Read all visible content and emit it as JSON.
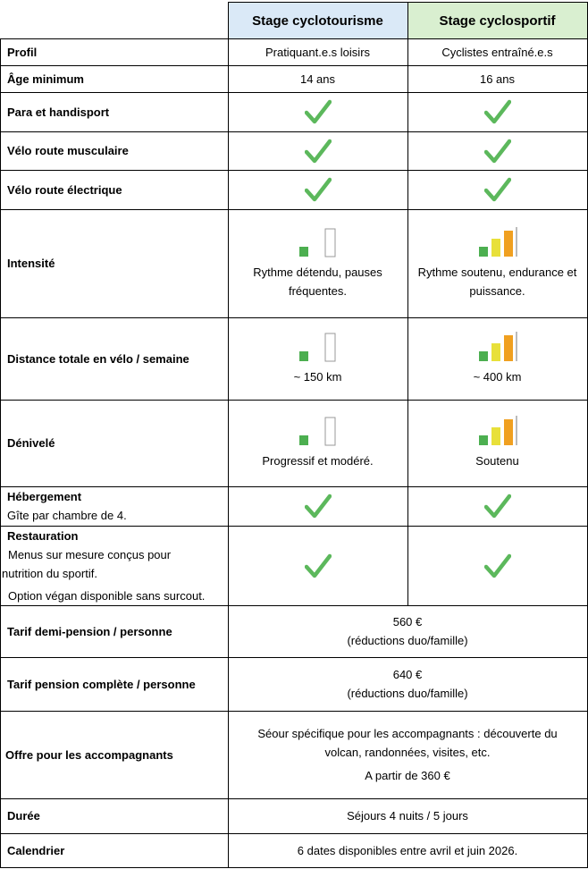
{
  "header": {
    "col1": "Stage cyclotourisme",
    "col2": "Stage cyclosportif"
  },
  "rows": {
    "profil": {
      "label": "Profil",
      "c1": "Pratiquant.e.s loisirs",
      "c2": "Cyclistes entraîné.e.s"
    },
    "age": {
      "label": "Âge minimum",
      "c1": "14 ans",
      "c2": "16 ans"
    },
    "para": {
      "label": "Para et handisport"
    },
    "musculaire": {
      "label": "Vélo route musculaire"
    },
    "electrique": {
      "label": "Vélo route électrique"
    },
    "intensite": {
      "label": "Intensité",
      "c1": [
        "Rythme détendu, pauses",
        "fréquentes."
      ],
      "c2": [
        "Rythme soutenu, endurance et",
        "puissance."
      ],
      "c1_level": 1,
      "c2_level": 3
    },
    "distance": {
      "label": "Distance totale en vélo / semaine",
      "c1": "~ 150 km",
      "c2": "~ 400 km",
      "c1_level": 1,
      "c2_level": 3
    },
    "denivele": {
      "label": "Dénivelé",
      "c1": "Progressif et modéré.",
      "c2": "Soutenu",
      "c1_level": 1,
      "c2_level": 3
    },
    "hebergement": {
      "label": "Hébergement",
      "sub": "Gîte par chambre de 4."
    },
    "restauration": {
      "label": "Restauration",
      "sub1": "Menus sur mesure conçus pour",
      "sub2": "nutrition du sportif.",
      "sub3": "Option végan disponible sans surcout."
    },
    "demi_pension": {
      "label": "Tarif demi-pension / personne",
      "v1": "560 €",
      "v2": "(réductions duo/famille)"
    },
    "pension_complete": {
      "label": "Tarif pension complète / personne",
      "v1": "640 €",
      "v2": "(réductions duo/famille)"
    },
    "accompagnants": {
      "label": "Offre pour les accompagnants",
      "v1": "Séour spécifique pour les accompagnants : découverte du",
      "v2": "volcan, randonnées, visites, etc.",
      "v3": "A partir de 360 €"
    },
    "duree": {
      "label": "Durée",
      "v": "Séjours 4 nuits / 5 jours"
    },
    "calendrier": {
      "label": "Calendrier",
      "v": "6 dates disponibles entre avril et juin 2026."
    }
  },
  "colors": {
    "check": "#5cb85c",
    "bar_green": "#4caf50",
    "bar_yellow": "#e8e03a",
    "bar_orange": "#f0a020",
    "header_blue": "#dae9f7",
    "header_green": "#d9efd0"
  },
  "icons": {
    "check": "check-icon",
    "bars": "signal-bars-icon"
  }
}
